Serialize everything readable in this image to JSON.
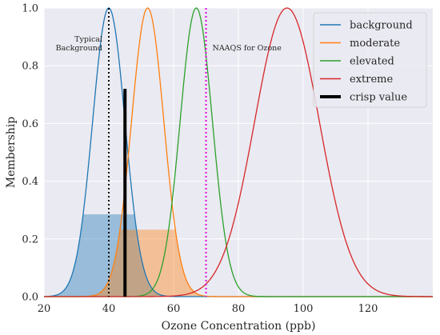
{
  "chart_data": {
    "type": "line",
    "xlabel": "Ozone Concentration (ppb)",
    "ylabel": "Membership",
    "xlim": [
      20,
      140
    ],
    "ylim": [
      0,
      1.0
    ],
    "x_ticks": [
      20,
      40,
      60,
      80,
      100,
      120
    ],
    "y_ticks": [
      0.0,
      0.2,
      0.4,
      0.6,
      0.8,
      1.0
    ],
    "x_tick_labels": [
      "20",
      "40",
      "60",
      "80",
      "100",
      "120"
    ],
    "y_tick_labels": [
      "0.0",
      "0.2",
      "0.4",
      "0.6",
      "0.8",
      "1.0"
    ],
    "grid": true,
    "legend_position": "top-right",
    "series": [
      {
        "name": "background",
        "center": 40,
        "sigma": 5,
        "color": "#1f77b4"
      },
      {
        "name": "moderate",
        "center": 52,
        "sigma": 5,
        "color": "#ff7f0e"
      },
      {
        "name": "elevated",
        "center": 67,
        "sigma": 5,
        "color": "#2ca02c"
      },
      {
        "name": "extreme",
        "center": 95,
        "sigma": 10,
        "color": "#d62728"
      }
    ],
    "filled_regions": [
      {
        "series": "background",
        "cut": 0.285,
        "color": "#1f77b4"
      },
      {
        "series": "moderate",
        "cut": 0.232,
        "color": "#ff7f0e"
      }
    ],
    "crisp_value": {
      "name": "crisp value",
      "x": 45,
      "y": 0.72,
      "color": "#000000"
    },
    "reference_lines": [
      {
        "x": 40,
        "label_lines": [
          "Typical",
          "Background"
        ],
        "color": "#000000",
        "style": "dotted"
      },
      {
        "x": 70,
        "label_lines": [
          "NAAQS for Ozone"
        ],
        "color": "#e000e0",
        "style": "dotted"
      }
    ]
  }
}
